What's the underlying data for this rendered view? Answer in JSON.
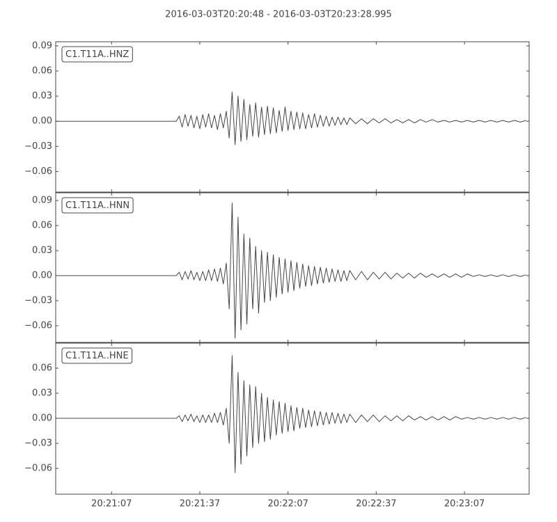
{
  "title": "2016-03-03T20:20:48  -  2016-03-03T20:23:28.995",
  "chart_data": [
    {
      "type": "line",
      "x": [
        0,
        41,
        42,
        43,
        44,
        45,
        46,
        47,
        48,
        49,
        50,
        51,
        52,
        53,
        54,
        55,
        56,
        57,
        58,
        59,
        60,
        61,
        62,
        63,
        64,
        65,
        66,
        67,
        68,
        69,
        70,
        71,
        72,
        73,
        74,
        75,
        76,
        77,
        78,
        79,
        80,
        81,
        82,
        83,
        84,
        85,
        86,
        87,
        88,
        89,
        90,
        91,
        92,
        93,
        94,
        95,
        96,
        97,
        98,
        99,
        100,
        102,
        104,
        106,
        108,
        110,
        112,
        114,
        116,
        118,
        120,
        122,
        124,
        126,
        128,
        130,
        132,
        134,
        136,
        138,
        140,
        142,
        144,
        146,
        148,
        150,
        152,
        154,
        156,
        158,
        160
      ],
      "series": [
        {
          "name": "C1.T11A..HNZ",
          "color": "#444444",
          "values": [
            0.0,
            0.0,
            0.006,
            -0.007,
            0.008,
            -0.006,
            0.007,
            -0.008,
            0.006,
            -0.009,
            0.008,
            -0.007,
            0.009,
            -0.008,
            0.007,
            -0.01,
            0.009,
            -0.008,
            0.012,
            -0.02,
            0.035,
            -0.028,
            0.03,
            -0.024,
            0.026,
            -0.022,
            0.02,
            -0.018,
            0.022,
            -0.019,
            0.017,
            -0.016,
            0.018,
            -0.015,
            0.016,
            -0.014,
            0.013,
            -0.012,
            0.017,
            -0.011,
            0.012,
            -0.01,
            0.011,
            -0.009,
            0.01,
            -0.009,
            0.008,
            -0.008,
            0.009,
            -0.007,
            0.007,
            -0.006,
            0.006,
            -0.006,
            0.005,
            -0.005,
            0.005,
            -0.004,
            0.004,
            -0.004,
            0.004,
            -0.003,
            0.003,
            -0.003,
            0.003,
            -0.002,
            0.003,
            -0.002,
            0.002,
            -0.002,
            0.002,
            -0.002,
            0.002,
            -0.001,
            0.002,
            -0.001,
            0.001,
            -0.001,
            0.001,
            -0.001,
            0.001,
            -0.001,
            0.001,
            -0.001,
            0.001,
            -0.001,
            0.001,
            -0.001,
            0.001,
            -0.001,
            0.001
          ]
        }
      ],
      "xlim": [
        0,
        160.995
      ],
      "xticks": [
        19,
        49,
        79,
        109,
        139
      ],
      "ylim": [
        -0.0846,
        0.0949
      ],
      "yticks": [
        0.09,
        0.06,
        0.03,
        {
          "value": 0,
          "label": "0.00"
        },
        {
          "value": -0.03,
          "label": "−0.03"
        },
        {
          "value": -0.06,
          "label": "−0.06"
        }
      ]
    },
    {
      "type": "line",
      "x": [
        0,
        41,
        42,
        43,
        44,
        45,
        46,
        47,
        48,
        49,
        50,
        51,
        52,
        53,
        54,
        55,
        56,
        57,
        58,
        59,
        60,
        61,
        62,
        63,
        64,
        65,
        66,
        67,
        68,
        69,
        70,
        71,
        72,
        73,
        74,
        75,
        76,
        77,
        78,
        79,
        80,
        81,
        82,
        83,
        84,
        85,
        86,
        87,
        88,
        89,
        90,
        91,
        92,
        93,
        94,
        95,
        96,
        97,
        98,
        99,
        100,
        102,
        104,
        106,
        108,
        110,
        112,
        114,
        116,
        118,
        120,
        122,
        124,
        126,
        128,
        130,
        132,
        134,
        136,
        138,
        140,
        142,
        144,
        146,
        148,
        150,
        152,
        154,
        156,
        158,
        160
      ],
      "series": [
        {
          "name": "C1.T11A..HNN",
          "color": "#444444",
          "values": [
            0.0,
            0.0,
            0.004,
            -0.005,
            0.005,
            -0.004,
            0.006,
            -0.005,
            0.004,
            -0.006,
            0.005,
            -0.006,
            0.007,
            -0.006,
            0.008,
            -0.007,
            0.009,
            -0.01,
            0.015,
            -0.04,
            0.087,
            -0.075,
            0.07,
            -0.065,
            0.05,
            -0.058,
            0.045,
            -0.04,
            0.035,
            -0.045,
            0.03,
            -0.032,
            0.028,
            -0.03,
            0.025,
            -0.026,
            0.022,
            -0.022,
            0.02,
            -0.02,
            0.018,
            -0.018,
            0.016,
            -0.015,
            0.014,
            -0.013,
            0.012,
            -0.012,
            0.011,
            -0.01,
            0.01,
            -0.009,
            0.009,
            -0.008,
            0.008,
            -0.007,
            0.007,
            -0.007,
            0.006,
            -0.006,
            0.006,
            -0.005,
            0.005,
            -0.005,
            0.004,
            -0.004,
            0.004,
            -0.004,
            0.003,
            -0.003,
            0.003,
            -0.003,
            0.003,
            -0.002,
            0.002,
            -0.002,
            0.002,
            -0.002,
            0.002,
            -0.002,
            0.002,
            -0.001,
            0.001,
            -0.001,
            0.001,
            -0.001,
            0.001,
            -0.001,
            0.001,
            -0.001,
            0.001
          ]
        }
      ],
      "xlim": [
        0,
        160.995
      ],
      "xticks": [
        19,
        49,
        79,
        109,
        139
      ],
      "ylim": [
        -0.08,
        0.0992
      ],
      "yticks": [
        0.09,
        0.06,
        0.03,
        {
          "value": 0,
          "label": "0.00"
        },
        {
          "value": -0.03,
          "label": "−0.03"
        },
        {
          "value": -0.06,
          "label": "−0.06"
        }
      ]
    },
    {
      "type": "line",
      "x": [
        0,
        41,
        42,
        43,
        44,
        45,
        46,
        47,
        48,
        49,
        50,
        51,
        52,
        53,
        54,
        55,
        56,
        57,
        58,
        59,
        60,
        61,
        62,
        63,
        64,
        65,
        66,
        67,
        68,
        69,
        70,
        71,
        72,
        73,
        74,
        75,
        76,
        77,
        78,
        79,
        80,
        81,
        82,
        83,
        84,
        85,
        86,
        87,
        88,
        89,
        90,
        91,
        92,
        93,
        94,
        95,
        96,
        97,
        98,
        99,
        100,
        102,
        104,
        106,
        108,
        110,
        112,
        114,
        116,
        118,
        120,
        122,
        124,
        126,
        128,
        130,
        132,
        134,
        136,
        138,
        140,
        142,
        144,
        146,
        148,
        150,
        152,
        154,
        156,
        158,
        160
      ],
      "series": [
        {
          "name": "C1.T11A..HNE",
          "color": "#444444",
          "values": [
            0.0,
            0.0,
            0.003,
            -0.004,
            0.004,
            -0.003,
            0.005,
            -0.004,
            0.003,
            -0.005,
            0.004,
            -0.005,
            0.004,
            -0.005,
            0.006,
            -0.005,
            0.007,
            -0.008,
            0.012,
            -0.03,
            0.075,
            -0.065,
            0.055,
            -0.055,
            0.045,
            -0.045,
            0.04,
            -0.035,
            0.038,
            -0.03,
            0.03,
            -0.028,
            0.025,
            -0.025,
            0.022,
            -0.02,
            0.02,
            -0.018,
            0.018,
            -0.016,
            0.015,
            -0.015,
            0.013,
            -0.012,
            0.012,
            -0.011,
            0.01,
            -0.01,
            0.009,
            -0.009,
            0.008,
            -0.008,
            0.007,
            -0.007,
            0.007,
            -0.006,
            0.006,
            -0.006,
            0.005,
            -0.005,
            0.005,
            -0.005,
            0.004,
            -0.004,
            0.004,
            -0.004,
            0.003,
            -0.003,
            0.003,
            -0.003,
            0.003,
            -0.002,
            0.002,
            -0.002,
            0.002,
            -0.002,
            0.002,
            -0.002,
            0.002,
            -0.001,
            0.001,
            -0.001,
            0.001,
            -0.001,
            0.001,
            -0.001,
            0.001,
            -0.001,
            0.001,
            -0.001,
            0.001
          ]
        }
      ],
      "xlim": [
        0,
        160.995
      ],
      "xticks": [
        {
          "value": 19,
          "label": "20:21:07"
        },
        {
          "value": 49,
          "label": "20:21:37"
        },
        {
          "value": 79,
          "label": "20:22:07"
        },
        {
          "value": 109,
          "label": "20:22:37"
        },
        {
          "value": 139,
          "label": "20:23:07"
        }
      ],
      "ylim": [
        -0.0908,
        0.09
      ],
      "yticks": [
        0.06,
        0.03,
        {
          "value": 0,
          "label": "0.00"
        },
        {
          "value": -0.03,
          "label": "−0.03"
        },
        {
          "value": -0.06,
          "label": "−0.06"
        }
      ]
    }
  ]
}
